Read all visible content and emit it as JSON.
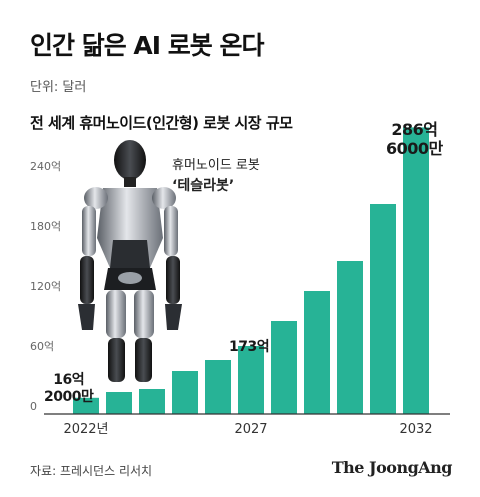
{
  "header": {
    "headline": "인간 닮은 AI 로봇 온다",
    "unit": "단위: 달러",
    "subtitle": "전 세계 휴머노이드(인간형) 로봇 시장 규모"
  },
  "robot": {
    "caption_line1": "휴머노이드 로봇",
    "caption_line2": "‘테슬라봇’"
  },
  "callouts": {
    "first_line1": "16억",
    "first_line2": "2000만",
    "mid": "173억",
    "last_line1": "286억",
    "last_line2": "6000만"
  },
  "footer": {
    "source": "자료: 프레시던스 리서치",
    "logo": "The JoongAng"
  },
  "colors": {
    "bar": "#27b396",
    "axis": "#333333",
    "tick_text": "#666666"
  },
  "chart_data": {
    "type": "bar",
    "x": [
      2022,
      2023,
      2024,
      2025,
      2026,
      2027,
      2028,
      2029,
      2030,
      2031,
      2032
    ],
    "values": [
      16.2,
      22,
      25,
      43,
      54,
      68,
      93,
      123,
      153,
      210,
      286.6
    ],
    "y_unit_note": "억 달러",
    "ylim": [
      0,
      300
    ],
    "yticks": [
      0,
      60,
      120,
      180,
      240
    ],
    "ytick_labels": [
      "0",
      "60억",
      "120억",
      "180억",
      "240억"
    ],
    "xtick_labels": [
      {
        "x": 2022,
        "label": "2022년"
      },
      {
        "x": 2027,
        "label": "2027"
      },
      {
        "x": 2032,
        "label": "2032"
      }
    ],
    "grid": false
  }
}
